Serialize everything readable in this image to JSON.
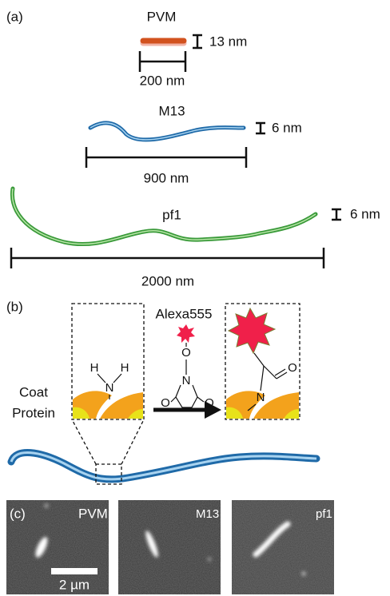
{
  "panel_a": {
    "label": "(a)",
    "filaments": [
      {
        "name": "PVM",
        "length": "200 nm",
        "width": "13 nm"
      },
      {
        "name": "M13",
        "length": "900 nm",
        "width": "6 nm"
      },
      {
        "name": "pf1",
        "length": "2000 nm",
        "width": "6 nm"
      }
    ]
  },
  "panel_b": {
    "label": "(b)",
    "dye": "Alexa555",
    "coat_protein": [
      "Coat",
      "Protein"
    ],
    "amine_atoms": [
      "H",
      "N",
      "H"
    ],
    "maleimide_atoms": [
      "O",
      "N",
      "O",
      "O"
    ],
    "product_atoms": [
      "N",
      "O"
    ]
  },
  "panel_c": {
    "label": "(c)",
    "images": [
      "PVM",
      "M13",
      "pf1"
    ],
    "scale_bar": "2 µm"
  }
}
